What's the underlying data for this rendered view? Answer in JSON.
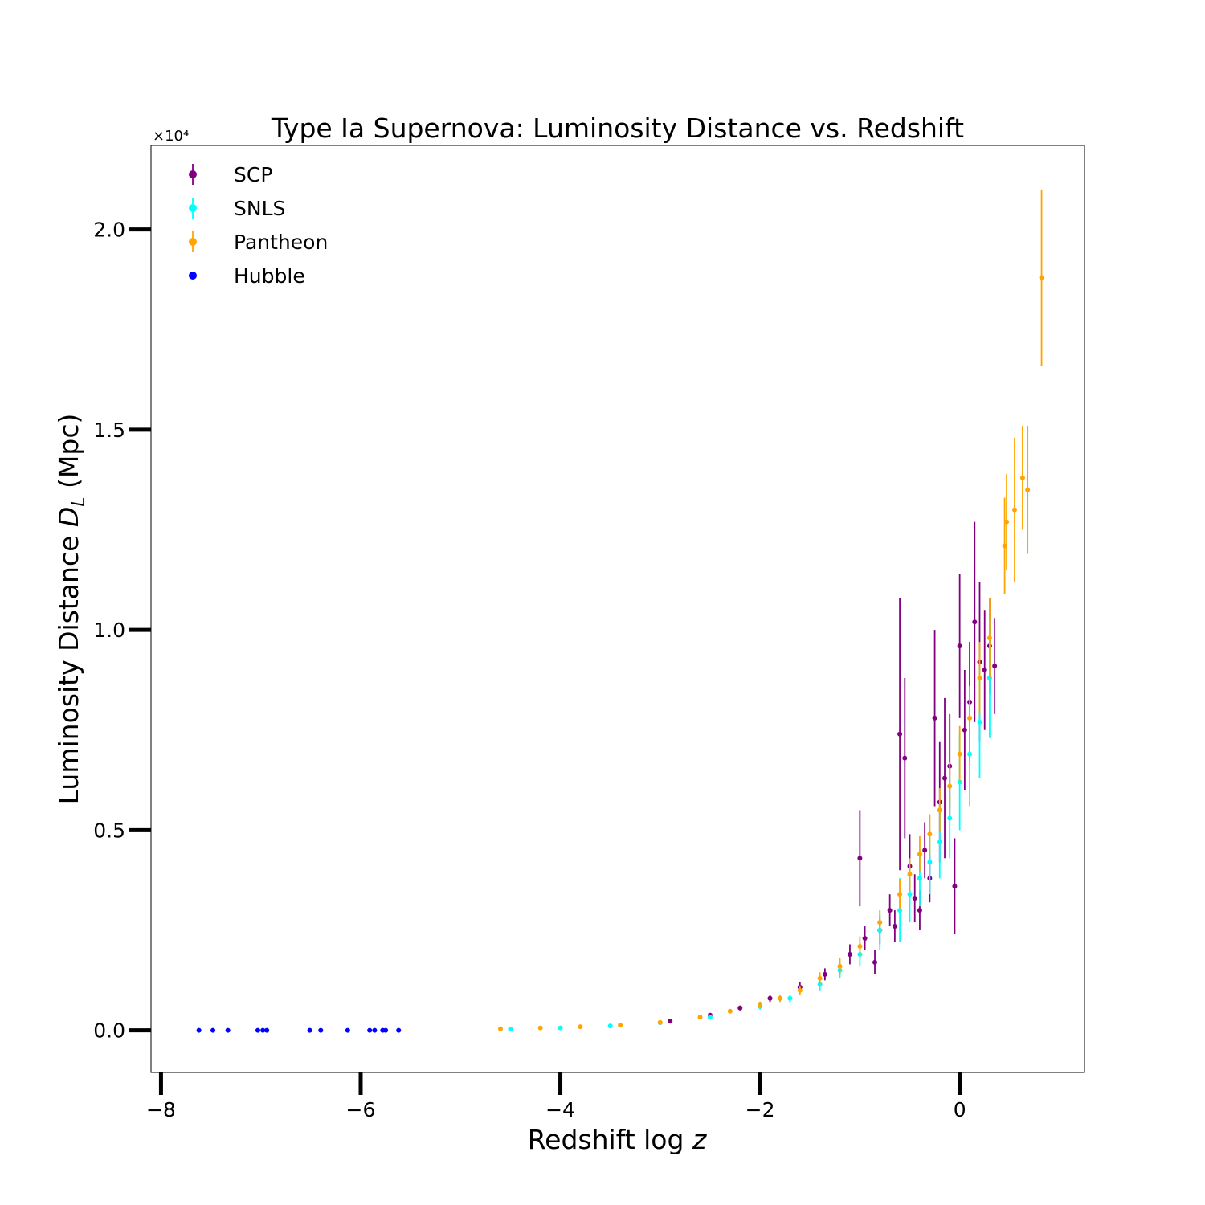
{
  "chart_data": {
    "type": "scatter",
    "title": "Type Ia Supernova: Luminosity Distance vs. Redshift",
    "xlabel": "Redshift log z",
    "ylabel": "Luminosity Distance D_L (Mpc)",
    "y_offset_label": "×10⁴",
    "xlim": [
      -8.1,
      1.25
    ],
    "ylim": [
      -1050,
      22100
    ],
    "x_ticks": [
      -8,
      -6,
      -4,
      -2,
      0
    ],
    "x_tick_labels": [
      "−8",
      "−6",
      "−4",
      "−2",
      "0"
    ],
    "y_ticks": [
      0,
      5000,
      10000,
      15000,
      20000
    ],
    "y_tick_labels": [
      "0.0",
      "0.5",
      "1.0",
      "1.5",
      "2.0"
    ],
    "grid": false,
    "legend_position": "top-left",
    "series": [
      {
        "name": "SCP",
        "color": "#800080",
        "marker": "errorbar",
        "points": [
          {
            "x": -2.9,
            "y": 230,
            "err": 30
          },
          {
            "x": -2.5,
            "y": 380,
            "err": 40
          },
          {
            "x": -2.2,
            "y": 560,
            "err": 60
          },
          {
            "x": -1.9,
            "y": 800,
            "err": 90
          },
          {
            "x": -1.6,
            "y": 1080,
            "err": 120
          },
          {
            "x": -1.35,
            "y": 1400,
            "err": 150
          },
          {
            "x": -1.1,
            "y": 1900,
            "err": 250
          },
          {
            "x": -1.0,
            "y": 4300,
            "err": 1200
          },
          {
            "x": -0.95,
            "y": 2300,
            "err": 300
          },
          {
            "x": -0.85,
            "y": 1700,
            "err": 300
          },
          {
            "x": -0.8,
            "y": 2500,
            "err": 350
          },
          {
            "x": -0.7,
            "y": 3000,
            "err": 400
          },
          {
            "x": -0.65,
            "y": 2600,
            "err": 400
          },
          {
            "x": -0.6,
            "y": 7400,
            "err": 3400
          },
          {
            "x": -0.55,
            "y": 6800,
            "err": 2000
          },
          {
            "x": -0.5,
            "y": 4100,
            "err": 800
          },
          {
            "x": -0.45,
            "y": 3300,
            "err": 600
          },
          {
            "x": -0.4,
            "y": 3000,
            "err": 500
          },
          {
            "x": -0.35,
            "y": 4500,
            "err": 700
          },
          {
            "x": -0.3,
            "y": 3800,
            "err": 600
          },
          {
            "x": -0.25,
            "y": 7800,
            "err": 2200
          },
          {
            "x": -0.2,
            "y": 5700,
            "err": 1500
          },
          {
            "x": -0.15,
            "y": 6300,
            "err": 2000
          },
          {
            "x": -0.1,
            "y": 6600,
            "err": 1300
          },
          {
            "x": -0.05,
            "y": 3600,
            "err": 1200
          },
          {
            "x": 0.0,
            "y": 9600,
            "err": 1800
          },
          {
            "x": 0.05,
            "y": 7500,
            "err": 1500
          },
          {
            "x": 0.1,
            "y": 8200,
            "err": 1500
          },
          {
            "x": 0.15,
            "y": 10200,
            "err": 2500
          },
          {
            "x": 0.2,
            "y": 9200,
            "err": 2000
          },
          {
            "x": 0.25,
            "y": 9000,
            "err": 1500
          },
          {
            "x": 0.3,
            "y": 9600,
            "err": 1200
          },
          {
            "x": 0.35,
            "y": 9100,
            "err": 1200
          }
        ]
      },
      {
        "name": "SNLS",
        "color": "#00ffff",
        "marker": "errorbar",
        "points": [
          {
            "x": -4.5,
            "y": 30,
            "err": 10
          },
          {
            "x": -4.0,
            "y": 60,
            "err": 15
          },
          {
            "x": -3.5,
            "y": 110,
            "err": 20
          },
          {
            "x": -3.0,
            "y": 190,
            "err": 30
          },
          {
            "x": -2.5,
            "y": 330,
            "err": 40
          },
          {
            "x": -2.0,
            "y": 600,
            "err": 80
          },
          {
            "x": -1.7,
            "y": 800,
            "err": 100
          },
          {
            "x": -1.4,
            "y": 1150,
            "err": 150
          },
          {
            "x": -1.2,
            "y": 1500,
            "err": 200
          },
          {
            "x": -1.0,
            "y": 1900,
            "err": 300
          },
          {
            "x": -0.8,
            "y": 2500,
            "err": 500
          },
          {
            "x": -0.6,
            "y": 3000,
            "err": 800
          },
          {
            "x": -0.5,
            "y": 3400,
            "err": 700
          },
          {
            "x": -0.4,
            "y": 3800,
            "err": 700
          },
          {
            "x": -0.3,
            "y": 4200,
            "err": 800
          },
          {
            "x": -0.2,
            "y": 4700,
            "err": 900
          },
          {
            "x": -0.1,
            "y": 5300,
            "err": 1000
          },
          {
            "x": 0.0,
            "y": 6200,
            "err": 1200
          },
          {
            "x": 0.1,
            "y": 6900,
            "err": 1300
          },
          {
            "x": 0.2,
            "y": 7700,
            "err": 1400
          },
          {
            "x": 0.3,
            "y": 8800,
            "err": 1500
          }
        ]
      },
      {
        "name": "Pantheon",
        "color": "#ffa500",
        "marker": "errorbar",
        "points": [
          {
            "x": -4.6,
            "y": 40,
            "err": 10
          },
          {
            "x": -4.2,
            "y": 60,
            "err": 15
          },
          {
            "x": -3.8,
            "y": 90,
            "err": 20
          },
          {
            "x": -3.4,
            "y": 130,
            "err": 25
          },
          {
            "x": -3.0,
            "y": 200,
            "err": 30
          },
          {
            "x": -2.6,
            "y": 330,
            "err": 40
          },
          {
            "x": -2.3,
            "y": 480,
            "err": 50
          },
          {
            "x": -2.0,
            "y": 650,
            "err": 70
          },
          {
            "x": -1.8,
            "y": 800,
            "err": 90
          },
          {
            "x": -1.6,
            "y": 1000,
            "err": 120
          },
          {
            "x": -1.4,
            "y": 1300,
            "err": 150
          },
          {
            "x": -1.2,
            "y": 1600,
            "err": 200
          },
          {
            "x": -1.0,
            "y": 2100,
            "err": 250
          },
          {
            "x": -0.8,
            "y": 2700,
            "err": 300
          },
          {
            "x": -0.6,
            "y": 3400,
            "err": 350
          },
          {
            "x": -0.5,
            "y": 3900,
            "err": 400
          },
          {
            "x": -0.4,
            "y": 4400,
            "err": 450
          },
          {
            "x": -0.3,
            "y": 4900,
            "err": 500
          },
          {
            "x": -0.2,
            "y": 5500,
            "err": 550
          },
          {
            "x": -0.1,
            "y": 6100,
            "err": 600
          },
          {
            "x": 0.0,
            "y": 6900,
            "err": 700
          },
          {
            "x": 0.1,
            "y": 7800,
            "err": 800
          },
          {
            "x": 0.2,
            "y": 8800,
            "err": 900
          },
          {
            "x": 0.3,
            "y": 9800,
            "err": 1000
          },
          {
            "x": 0.45,
            "y": 12100,
            "err": 1200
          },
          {
            "x": 0.47,
            "y": 12700,
            "err": 1200
          },
          {
            "x": 0.55,
            "y": 13000,
            "err": 1800
          },
          {
            "x": 0.63,
            "y": 13800,
            "err": 1300
          },
          {
            "x": 0.68,
            "y": 13500,
            "err": 1600
          },
          {
            "x": 0.82,
            "y": 18800,
            "err": 2200
          }
        ]
      },
      {
        "name": "Hubble",
        "color": "#0000ff",
        "marker": "dot",
        "points": [
          {
            "x": -7.62,
            "y": 0
          },
          {
            "x": -7.48,
            "y": 0
          },
          {
            "x": -7.33,
            "y": 0
          },
          {
            "x": -7.03,
            "y": 0
          },
          {
            "x": -6.98,
            "y": 0
          },
          {
            "x": -6.94,
            "y": 0
          },
          {
            "x": -6.51,
            "y": 0
          },
          {
            "x": -6.4,
            "y": 0
          },
          {
            "x": -6.13,
            "y": 0
          },
          {
            "x": -5.91,
            "y": 0
          },
          {
            "x": -5.86,
            "y": 0
          },
          {
            "x": -5.78,
            "y": 0
          },
          {
            "x": -5.75,
            "y": 0
          },
          {
            "x": -5.62,
            "y": 0
          }
        ]
      }
    ]
  }
}
